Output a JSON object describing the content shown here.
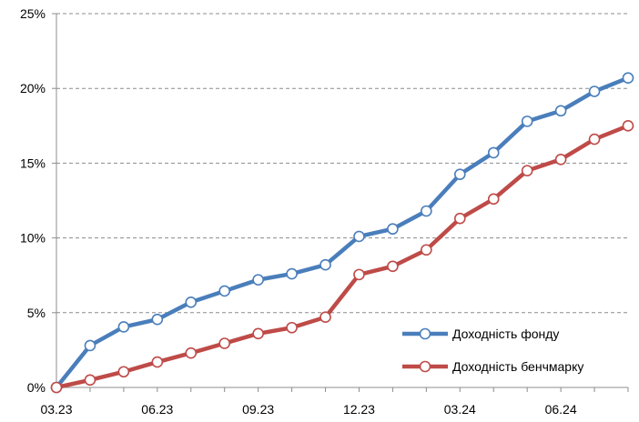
{
  "chart_data": {
    "type": "line",
    "title": "",
    "xlabel": "",
    "ylabel": "",
    "x_tick_labels": [
      "03.23",
      "06.23",
      "09.23",
      "12.23",
      "03.24",
      "06.24"
    ],
    "x_tick_indices": [
      0,
      3,
      6,
      9,
      12,
      15
    ],
    "y_tick_labels": [
      "0%",
      "5%",
      "10%",
      "15%",
      "20%",
      "25%"
    ],
    "y_ticks": [
      0,
      5,
      10,
      15,
      20,
      25
    ],
    "ylim": [
      0,
      25
    ],
    "grid": "horizontal dashed",
    "legend_position": "bottom-right",
    "series": [
      {
        "name": "Доходність фонду",
        "color": "#4a7ebb",
        "values": [
          0.0,
          2.8,
          4.05,
          4.55,
          5.7,
          6.45,
          7.2,
          7.6,
          8.2,
          10.1,
          10.6,
          11.8,
          14.25,
          15.7,
          17.8,
          18.5,
          19.8,
          20.7
        ]
      },
      {
        "name": "Доходність бенчмарку",
        "color": "#be4b48",
        "values": [
          0.0,
          0.5,
          1.05,
          1.7,
          2.3,
          2.95,
          3.6,
          4.0,
          4.7,
          7.55,
          8.1,
          9.2,
          11.3,
          12.6,
          14.5,
          15.25,
          16.6,
          17.5
        ]
      }
    ],
    "point_count": 18
  }
}
